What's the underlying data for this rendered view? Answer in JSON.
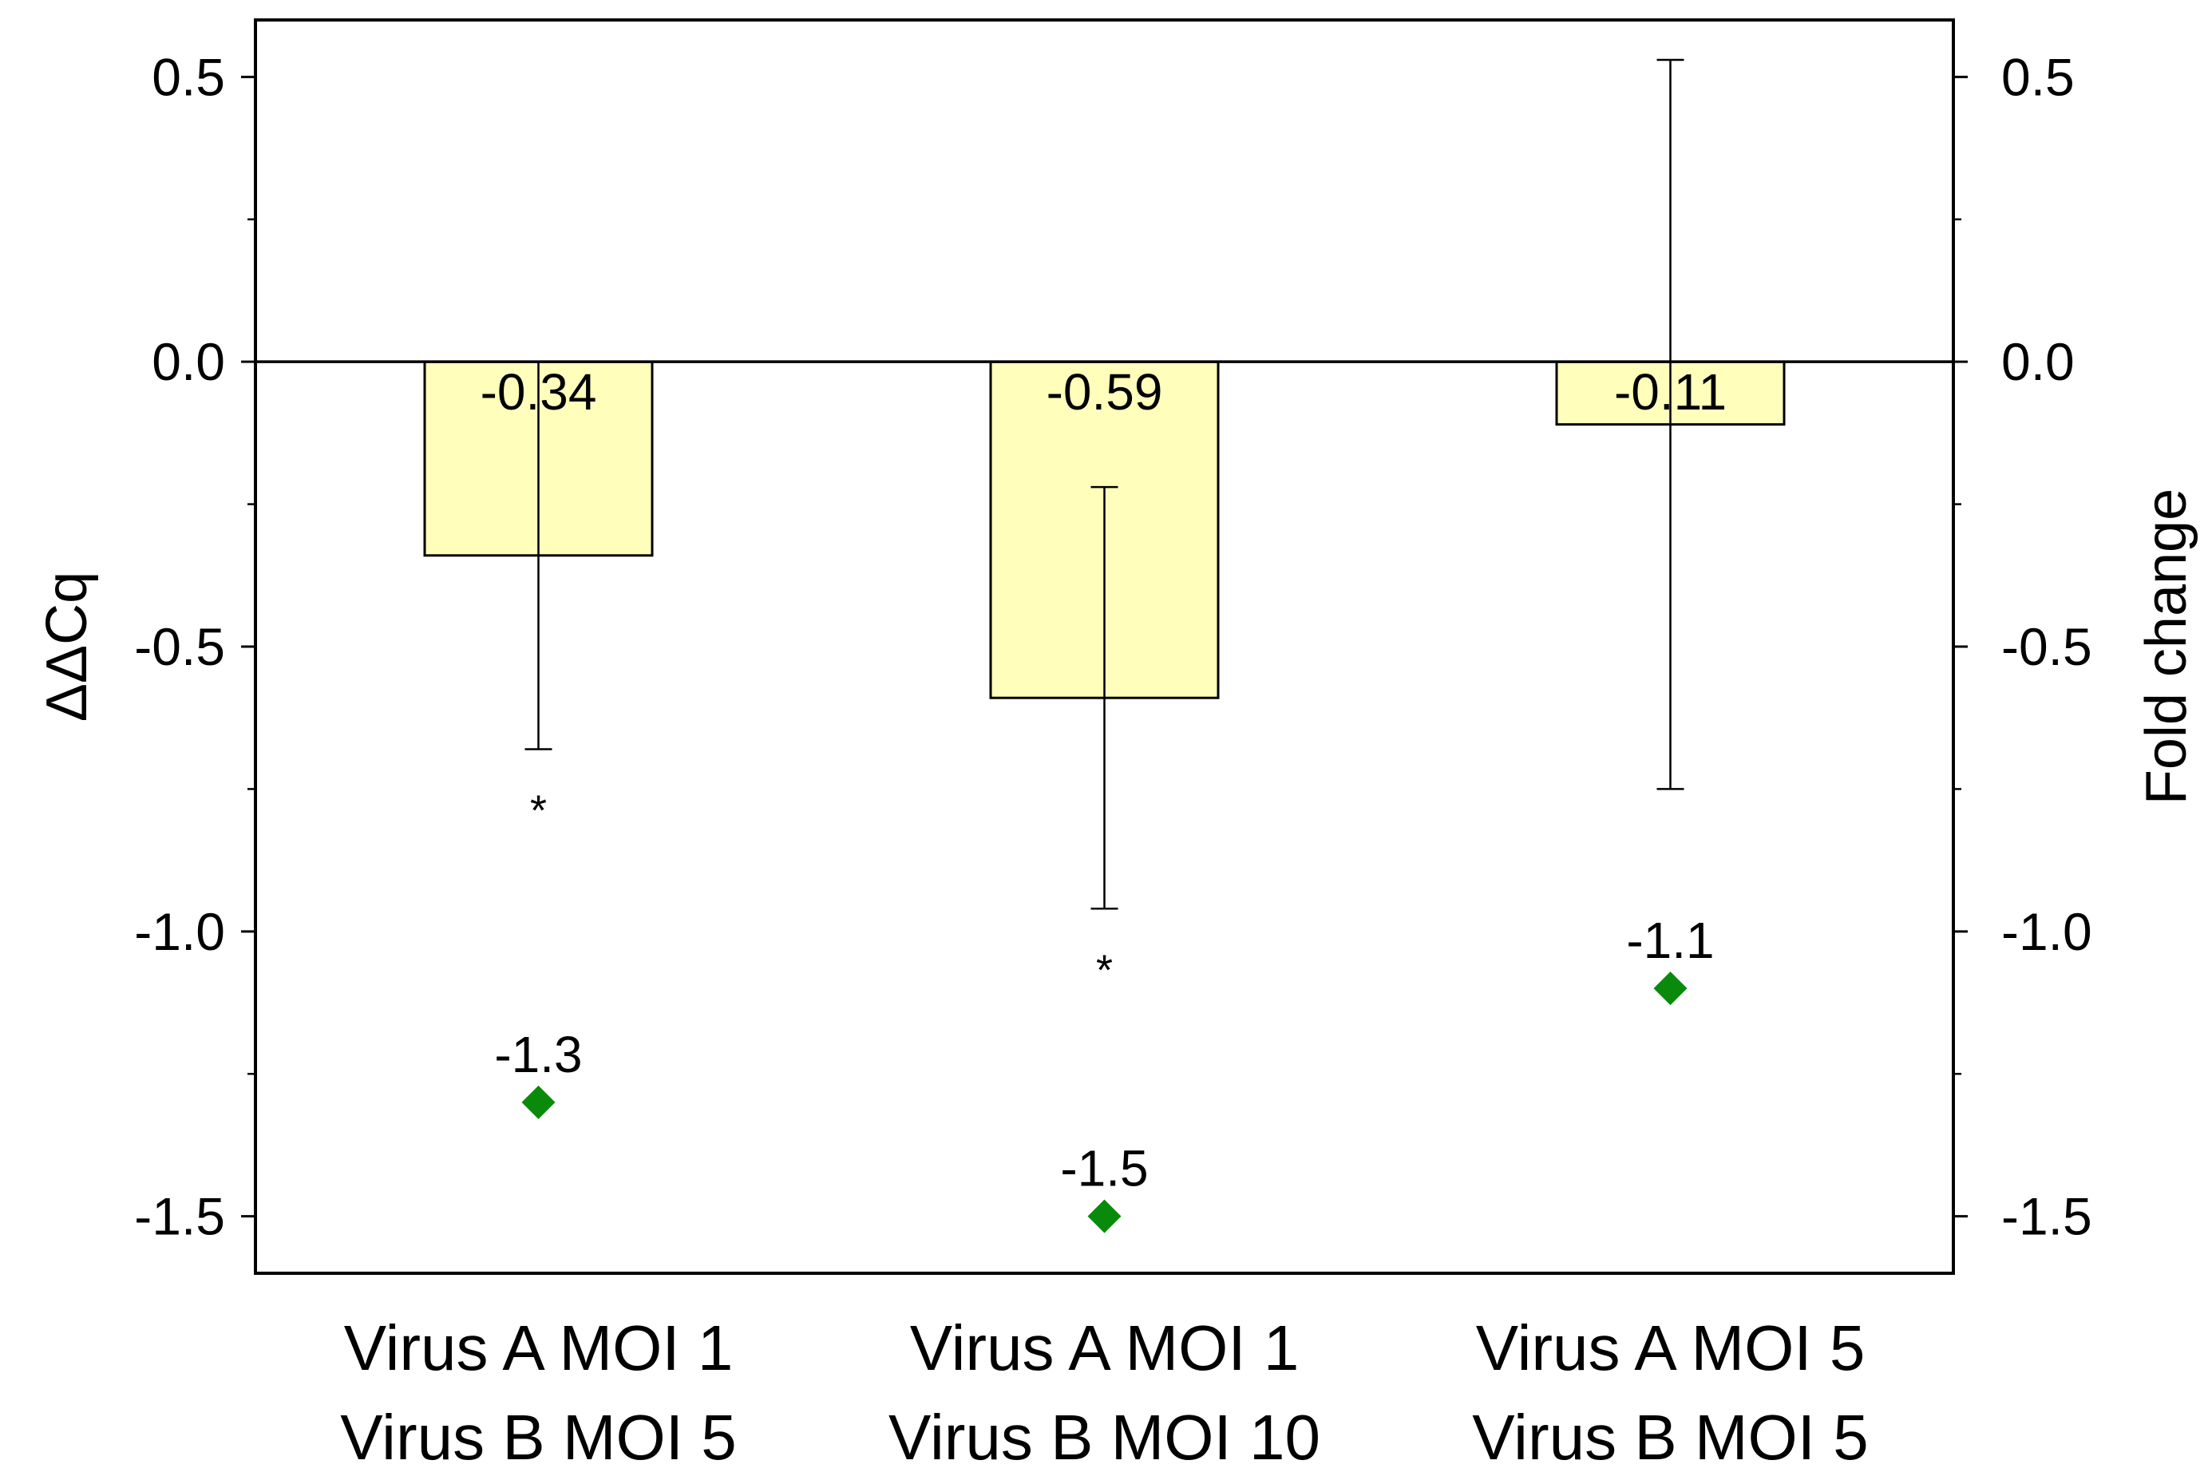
{
  "chart_data": {
    "type": "bar",
    "categories": [
      {
        "line1": "Virus A MOI 1",
        "line2": "Virus B MOI 5"
      },
      {
        "line1": "Virus A MOI 1",
        "line2": "Virus B MOI 10"
      },
      {
        "line1": "Virus A MOI 5",
        "line2": "Virus B MOI 5"
      }
    ],
    "ylabel_left": "ΔΔCq",
    "ylabel_right": "Fold change",
    "ylim_left": [
      -1.6,
      0.6
    ],
    "ylim_right": [
      -1.6,
      0.6
    ],
    "yticks_left": [
      "0.5",
      "0.0",
      "-0.5",
      "-1.0",
      "-1.5"
    ],
    "yticks_right": [
      "0.5",
      "0.0",
      "-0.5",
      "-1.0",
      "-1.5"
    ],
    "ytick_values": [
      0.5,
      0.0,
      -0.5,
      -1.0,
      -1.5
    ],
    "series": [
      {
        "type": "bar",
        "axis": "left",
        "values": [
          -0.34,
          -0.59,
          -0.11
        ],
        "value_labels": [
          "-0.34",
          "-0.59",
          "-0.11"
        ],
        "error_bars": [
          {
            "low": -0.68,
            "high": 0.0
          },
          {
            "low": -0.96,
            "high": -0.22
          },
          {
            "low": -0.75,
            "high": 0.53
          }
        ],
        "significance": [
          "*",
          "*",
          ""
        ],
        "color": "#FFFFBB"
      },
      {
        "type": "scatter",
        "axis": "right",
        "marker": "diamond",
        "values": [
          -1.3,
          -1.5,
          -1.1
        ],
        "value_labels": [
          "-1.3",
          "-1.5",
          "-1.1"
        ],
        "color": "#0A8A0A"
      }
    ],
    "grid": false,
    "legend": "none",
    "zero_line": true
  }
}
